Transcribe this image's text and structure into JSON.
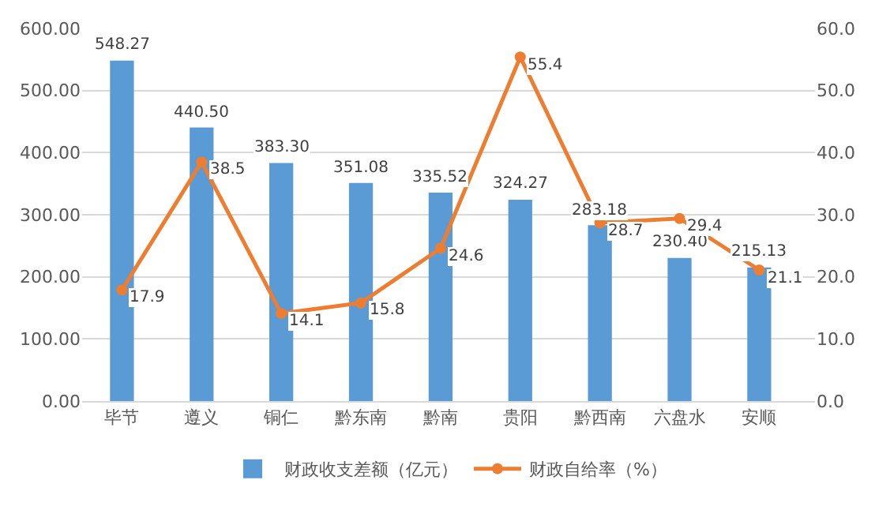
{
  "chart_data": {
    "type": "bar",
    "categories": [
      "毕节",
      "遵义",
      "铜仁",
      "黔东南",
      "黔南",
      "贵阳",
      "黔西南",
      "六盘水",
      "安顺"
    ],
    "series": [
      {
        "name": "财政收支差额（亿元）",
        "color": "#5b9bd5",
        "values": [
          548.27,
          440.5,
          383.3,
          351.08,
          335.52,
          324.27,
          283.18,
          230.4,
          215.13
        ],
        "value_labels": [
          "548.27",
          "440.50",
          "383.30",
          "351.08",
          "335.52",
          "324.27",
          "283.18",
          "230.40",
          "215.13"
        ]
      },
      {
        "name": "财政自给率（%）",
        "type": "line",
        "axis": "y2",
        "color": "#ed7d31",
        "marker": "circle",
        "values": [
          17.9,
          38.5,
          14.1,
          15.8,
          24.6,
          55.4,
          28.7,
          29.4,
          21.1
        ],
        "value_labels": [
          "17.9",
          "38.5",
          "14.1",
          "15.8",
          "24.6",
          "55.4",
          "28.7",
          "29.4",
          "21.1"
        ]
      }
    ],
    "ylim": [
      0,
      600
    ],
    "yticks": [
      {
        "value": 0,
        "label": "0.00"
      },
      {
        "value": 100,
        "label": "100.00"
      },
      {
        "value": 200,
        "label": "200.00"
      },
      {
        "value": 300,
        "label": "300.00"
      },
      {
        "value": 400,
        "label": "400.00"
      },
      {
        "value": 500,
        "label": "500.00"
      },
      {
        "value": 600,
        "label": "600.00"
      }
    ],
    "y2lim": [
      0,
      60
    ],
    "y2ticks": [
      {
        "value": 0,
        "label": "0.0"
      },
      {
        "value": 10,
        "label": "10.0"
      },
      {
        "value": 20,
        "label": "20.0"
      },
      {
        "value": 30,
        "label": "30.0"
      },
      {
        "value": 40,
        "label": "40.0"
      },
      {
        "value": 50,
        "label": "50.0"
      },
      {
        "value": 60,
        "label": "60.0"
      }
    ],
    "grid": "y",
    "legend": "bottom"
  }
}
